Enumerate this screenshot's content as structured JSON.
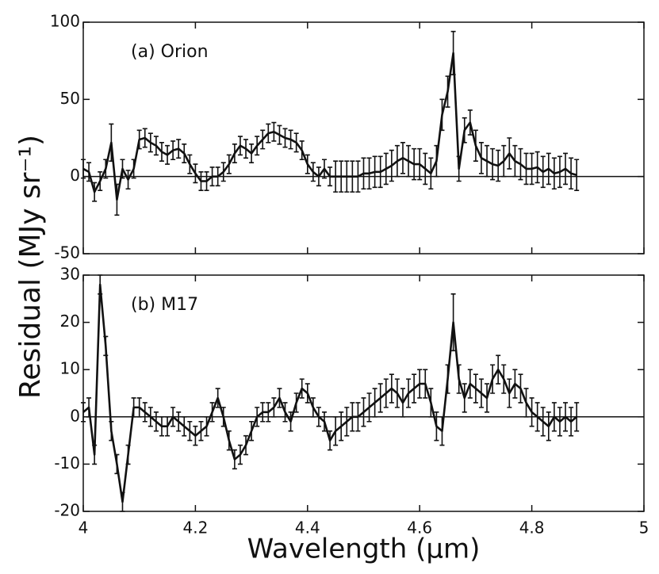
{
  "chart_data": [
    {
      "type": "line",
      "label": "(a) Orion",
      "ylabel": "Residual (MJy sr⁻¹)",
      "color": "#111111",
      "x": [
        4.0,
        4.01,
        4.02,
        4.03,
        4.04,
        4.05,
        4.06,
        4.07,
        4.08,
        4.09,
        4.1,
        4.11,
        4.12,
        4.13,
        4.14,
        4.15,
        4.16,
        4.17,
        4.18,
        4.19,
        4.2,
        4.21,
        4.22,
        4.23,
        4.24,
        4.25,
        4.26,
        4.27,
        4.28,
        4.29,
        4.3,
        4.31,
        4.32,
        4.33,
        4.34,
        4.35,
        4.36,
        4.37,
        4.38,
        4.39,
        4.4,
        4.41,
        4.42,
        4.43,
        4.44,
        4.45,
        4.46,
        4.47,
        4.48,
        4.49,
        4.5,
        4.51,
        4.52,
        4.53,
        4.54,
        4.55,
        4.56,
        4.57,
        4.58,
        4.59,
        4.6,
        4.61,
        4.62,
        4.63,
        4.64,
        4.65,
        4.66,
        4.67,
        4.68,
        4.69,
        4.7,
        4.71,
        4.72,
        4.73,
        4.74,
        4.75,
        4.76,
        4.77,
        4.78,
        4.79,
        4.8,
        4.81,
        4.82,
        4.83,
        4.84,
        4.85,
        4.86,
        4.87,
        4.88
      ],
      "values": [
        5,
        3,
        -10,
        -3,
        5,
        22,
        -15,
        5,
        -2,
        5,
        24,
        25,
        22,
        20,
        16,
        14,
        17,
        18,
        15,
        8,
        2,
        -3,
        -3,
        0,
        0,
        3,
        8,
        15,
        20,
        18,
        15,
        20,
        24,
        28,
        29,
        27,
        25,
        24,
        22,
        17,
        8,
        3,
        0,
        5,
        0,
        0,
        0,
        0,
        0,
        0,
        2,
        2,
        3,
        3,
        5,
        7,
        10,
        12,
        10,
        8,
        8,
        5,
        2,
        10,
        40,
        55,
        80,
        5,
        30,
        35,
        20,
        12,
        10,
        8,
        7,
        10,
        15,
        10,
        8,
        5,
        5,
        6,
        3,
        5,
        2,
        3,
        5,
        2,
        1
      ],
      "errors": [
        6,
        6,
        6,
        6,
        6,
        12,
        10,
        6,
        6,
        6,
        6,
        6,
        6,
        6,
        6,
        6,
        6,
        6,
        6,
        6,
        6,
        6,
        6,
        6,
        6,
        6,
        6,
        6,
        6,
        6,
        6,
        6,
        6,
        6,
        6,
        6,
        6,
        6,
        6,
        6,
        6,
        6,
        6,
        6,
        6,
        10,
        10,
        10,
        10,
        10,
        10,
        10,
        10,
        10,
        10,
        10,
        10,
        10,
        10,
        10,
        10,
        10,
        10,
        10,
        10,
        10,
        14,
        8,
        8,
        8,
        10,
        10,
        10,
        10,
        10,
        10,
        10,
        10,
        10,
        10,
        10,
        10,
        10,
        10,
        10,
        10,
        10,
        10,
        10
      ],
      "xlim": [
        4,
        5
      ],
      "xticks": [
        4,
        4.2,
        4.4,
        4.6,
        4.8,
        5
      ],
      "ylim": [
        -50,
        100
      ],
      "yticks": [
        100,
        50,
        0,
        -50
      ]
    },
    {
      "type": "line",
      "label": "(b) M17",
      "xlabel": "Wavelength (μm)",
      "color": "#111111",
      "x": [
        4.0,
        4.01,
        4.02,
        4.03,
        4.04,
        4.05,
        4.06,
        4.07,
        4.08,
        4.09,
        4.1,
        4.11,
        4.12,
        4.13,
        4.14,
        4.15,
        4.16,
        4.17,
        4.18,
        4.19,
        4.2,
        4.21,
        4.22,
        4.23,
        4.24,
        4.25,
        4.26,
        4.27,
        4.28,
        4.29,
        4.3,
        4.31,
        4.32,
        4.33,
        4.34,
        4.35,
        4.36,
        4.37,
        4.38,
        4.39,
        4.4,
        4.41,
        4.42,
        4.43,
        4.44,
        4.45,
        4.46,
        4.47,
        4.48,
        4.49,
        4.5,
        4.51,
        4.52,
        4.53,
        4.54,
        4.55,
        4.56,
        4.57,
        4.58,
        4.59,
        4.6,
        4.61,
        4.62,
        4.63,
        4.64,
        4.65,
        4.66,
        4.67,
        4.68,
        4.69,
        4.7,
        4.71,
        4.72,
        4.73,
        4.74,
        4.75,
        4.76,
        4.77,
        4.78,
        4.79,
        4.8,
        4.81,
        4.82,
        4.83,
        4.84,
        4.85,
        4.86,
        4.87,
        4.88
      ],
      "values": [
        1,
        2,
        -8,
        28,
        15,
        -3,
        -10,
        -18,
        -8,
        2,
        2,
        1,
        0,
        -1,
        -2,
        -2,
        0,
        -1,
        -2,
        -3,
        -4,
        -3,
        -2,
        1,
        4,
        0,
        -5,
        -9,
        -8,
        -6,
        -3,
        0,
        1,
        1,
        2,
        4,
        1,
        -1,
        3,
        6,
        5,
        2,
        0,
        -1,
        -5,
        -3,
        -2,
        -1,
        0,
        0,
        1,
        2,
        3,
        4,
        5,
        6,
        5,
        3,
        5,
        6,
        7,
        7,
        3,
        -2,
        -3,
        8,
        20,
        8,
        4,
        7,
        6,
        5,
        4,
        8,
        10,
        8,
        5,
        7,
        6,
        3,
        1,
        0,
        -1,
        -2,
        0,
        -1,
        0,
        -1,
        0
      ],
      "errors": [
        2,
        2,
        2,
        2,
        2,
        2,
        2,
        2,
        2,
        2,
        2,
        2,
        2,
        2,
        2,
        2,
        2,
        2,
        2,
        2,
        2,
        2,
        2,
        2,
        2,
        2,
        2,
        2,
        2,
        2,
        2,
        2,
        2,
        2,
        2,
        2,
        2,
        2,
        2,
        2,
        2,
        2,
        2,
        2,
        2,
        3,
        3,
        3,
        3,
        3,
        3,
        3,
        3,
        3,
        3,
        3,
        3,
        3,
        3,
        3,
        3,
        3,
        3,
        3,
        3,
        3,
        6,
        3,
        3,
        3,
        3,
        3,
        3,
        3,
        3,
        3,
        3,
        3,
        3,
        3,
        3,
        3,
        3,
        3,
        3,
        3,
        3,
        3,
        3
      ],
      "xlim": [
        4,
        5
      ],
      "xticks": [
        4,
        4.2,
        4.4,
        4.6,
        4.8,
        5
      ],
      "ylim": [
        -20,
        30
      ],
      "yticks": [
        30,
        20,
        10,
        0,
        -10,
        -20
      ]
    }
  ]
}
